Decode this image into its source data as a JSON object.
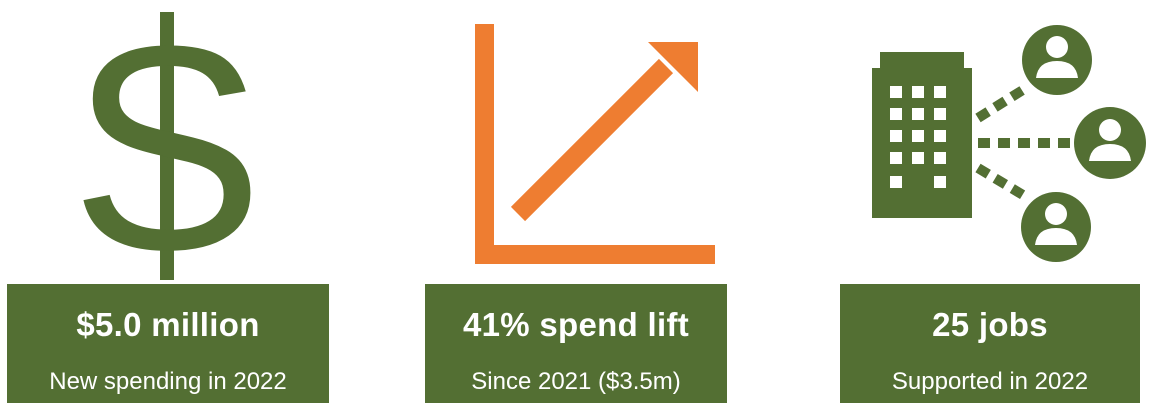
{
  "colors": {
    "green": "#536f33",
    "orange": "#ee7d31",
    "white": "#ffffff"
  },
  "stats": [
    {
      "icon": "dollar-sign-icon",
      "title": "$5.0 million",
      "subtitle": "New spending in 2022"
    },
    {
      "icon": "growth-arrow-chart-icon",
      "title": "41% spend lift",
      "subtitle": "Since 2021 ($3.5m)"
    },
    {
      "icon": "building-people-network-icon",
      "title": "25 jobs",
      "subtitle": "Supported in 2022"
    }
  ]
}
